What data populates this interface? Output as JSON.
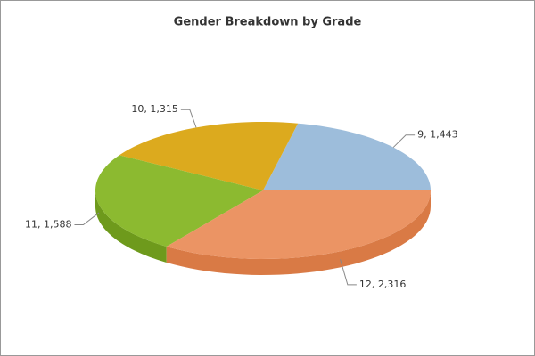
{
  "chart_data": {
    "type": "pie",
    "title": "Gender Breakdown by Grade",
    "values": [
      1443,
      1315,
      1588,
      2316
    ],
    "value_labels": [
      "9, 1,443",
      "10, 1,315",
      "11, 1,588",
      "12, 2,316"
    ],
    "colors": [
      "#9dbddb",
      "#dcaa1e",
      "#8cba30",
      "#eb9464"
    ],
    "side_colors": [
      "#7d9fbf",
      "#b3870f",
      "#6e9a1c",
      "#d97a45"
    ]
  }
}
